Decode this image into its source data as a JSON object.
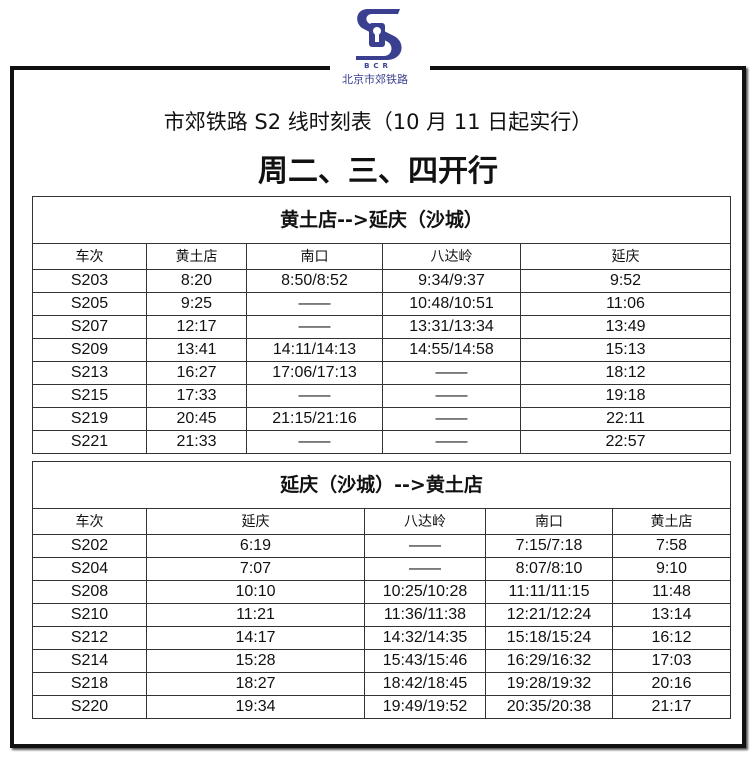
{
  "logo": {
    "abbr": "BCR",
    "name": "北京市郊铁路",
    "color": "#3a3f8f"
  },
  "title": "市郊铁路 S2 线时刻表（10 月 11 日起实行）",
  "subtitle": "周二、三、四开行",
  "tables": [
    {
      "direction": "黄土店-->延庆（沙城）",
      "headers": [
        "车次",
        "黄土店",
        "南口",
        "八达岭",
        "延庆"
      ],
      "rows": [
        [
          "S203",
          "8:20",
          "8:50/8:52",
          "9:34/9:37",
          "9:52"
        ],
        [
          "S205",
          "9:25",
          "——",
          "10:48/10:51",
          "11:06"
        ],
        [
          "S207",
          "12:17",
          "——",
          "13:31/13:34",
          "13:49"
        ],
        [
          "S209",
          "13:41",
          "14:11/14:13",
          "14:55/14:58",
          "15:13"
        ],
        [
          "S213",
          "16:27",
          "17:06/17:13",
          "——",
          "18:12"
        ],
        [
          "S215",
          "17:33",
          "——",
          "——",
          "19:18"
        ],
        [
          "S219",
          "20:45",
          "21:15/21:16",
          "——",
          "22:11"
        ],
        [
          "S221",
          "21:33",
          "——",
          "——",
          "22:57"
        ]
      ]
    },
    {
      "direction": "延庆（沙城）-->黄土店",
      "headers": [
        "车次",
        "延庆",
        "八达岭",
        "南口",
        "黄土店"
      ],
      "rows": [
        [
          "S202",
          "6:19",
          "——",
          "7:15/7:18",
          "7:58"
        ],
        [
          "S204",
          "7:07",
          "——",
          "8:07/8:10",
          "9:10"
        ],
        [
          "S208",
          "10:10",
          "10:25/10:28",
          "11:11/11:15",
          "11:48"
        ],
        [
          "S210",
          "11:21",
          "11:36/11:38",
          "12:21/12:24",
          "13:14"
        ],
        [
          "S212",
          "14:17",
          "14:32/14:35",
          "15:18/15:24",
          "16:12"
        ],
        [
          "S214",
          "15:28",
          "15:43/15:46",
          "16:29/16:32",
          "17:03"
        ],
        [
          "S218",
          "18:27",
          "18:42/18:45",
          "19:28/19:32",
          "20:16"
        ],
        [
          "S220",
          "19:34",
          "19:49/19:52",
          "20:35/20:38",
          "21:17"
        ]
      ]
    }
  ]
}
